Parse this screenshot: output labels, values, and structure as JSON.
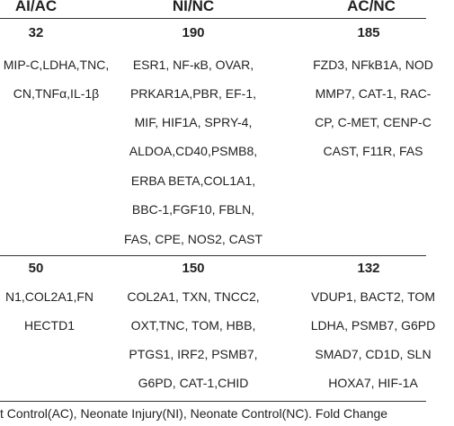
{
  "headers": [
    "AI/AC",
    "NI/NC",
    "AC/NC"
  ],
  "section1": {
    "counts": [
      "32",
      "190",
      "185"
    ],
    "col1": [
      "MIP-C,LDHA,TNC,",
      "CN,TNFα,IL-1β"
    ],
    "col2": [
      "ESR1, NF-κB, OVAR,",
      "PRKAR1A,PBR, EF-1,",
      "MIF, HIF1A, SPRY-4,",
      "ALDOA,CD40,PSMB8,",
      "ERBA BETA,COL1A1,",
      "BBC-1,FGF10, FBLN,",
      "FAS, CPE, NOS2, CAST"
    ],
    "col3": [
      "FZD3, NFkB1A, NOD",
      "MMP7, CAT-1, RAC-",
      "CP, C-MET, CENP-C",
      "CAST, F11R, FAS"
    ]
  },
  "section2": {
    "counts": [
      "50",
      "150",
      "132"
    ],
    "col1": [
      "N1,COL2A1,FN",
      "HECTD1"
    ],
    "col2": [
      "COL2A1, TXN, TNCC2,",
      "OXT,TNC, TOM, HBB,",
      "PTGS1, IRF2, PSMB7,",
      "G6PD, CAT-1,CHID"
    ],
    "col3": [
      "VDUP1, BACT2, TOM",
      "LDHA, PSMB7, G6PD",
      "SMAD7, CD1D, SLN",
      "HOXA7, HIF-1A"
    ]
  },
  "footer": "t Control(AC), Neonate Injury(NI), Neonate Control(NC). Fold Change"
}
